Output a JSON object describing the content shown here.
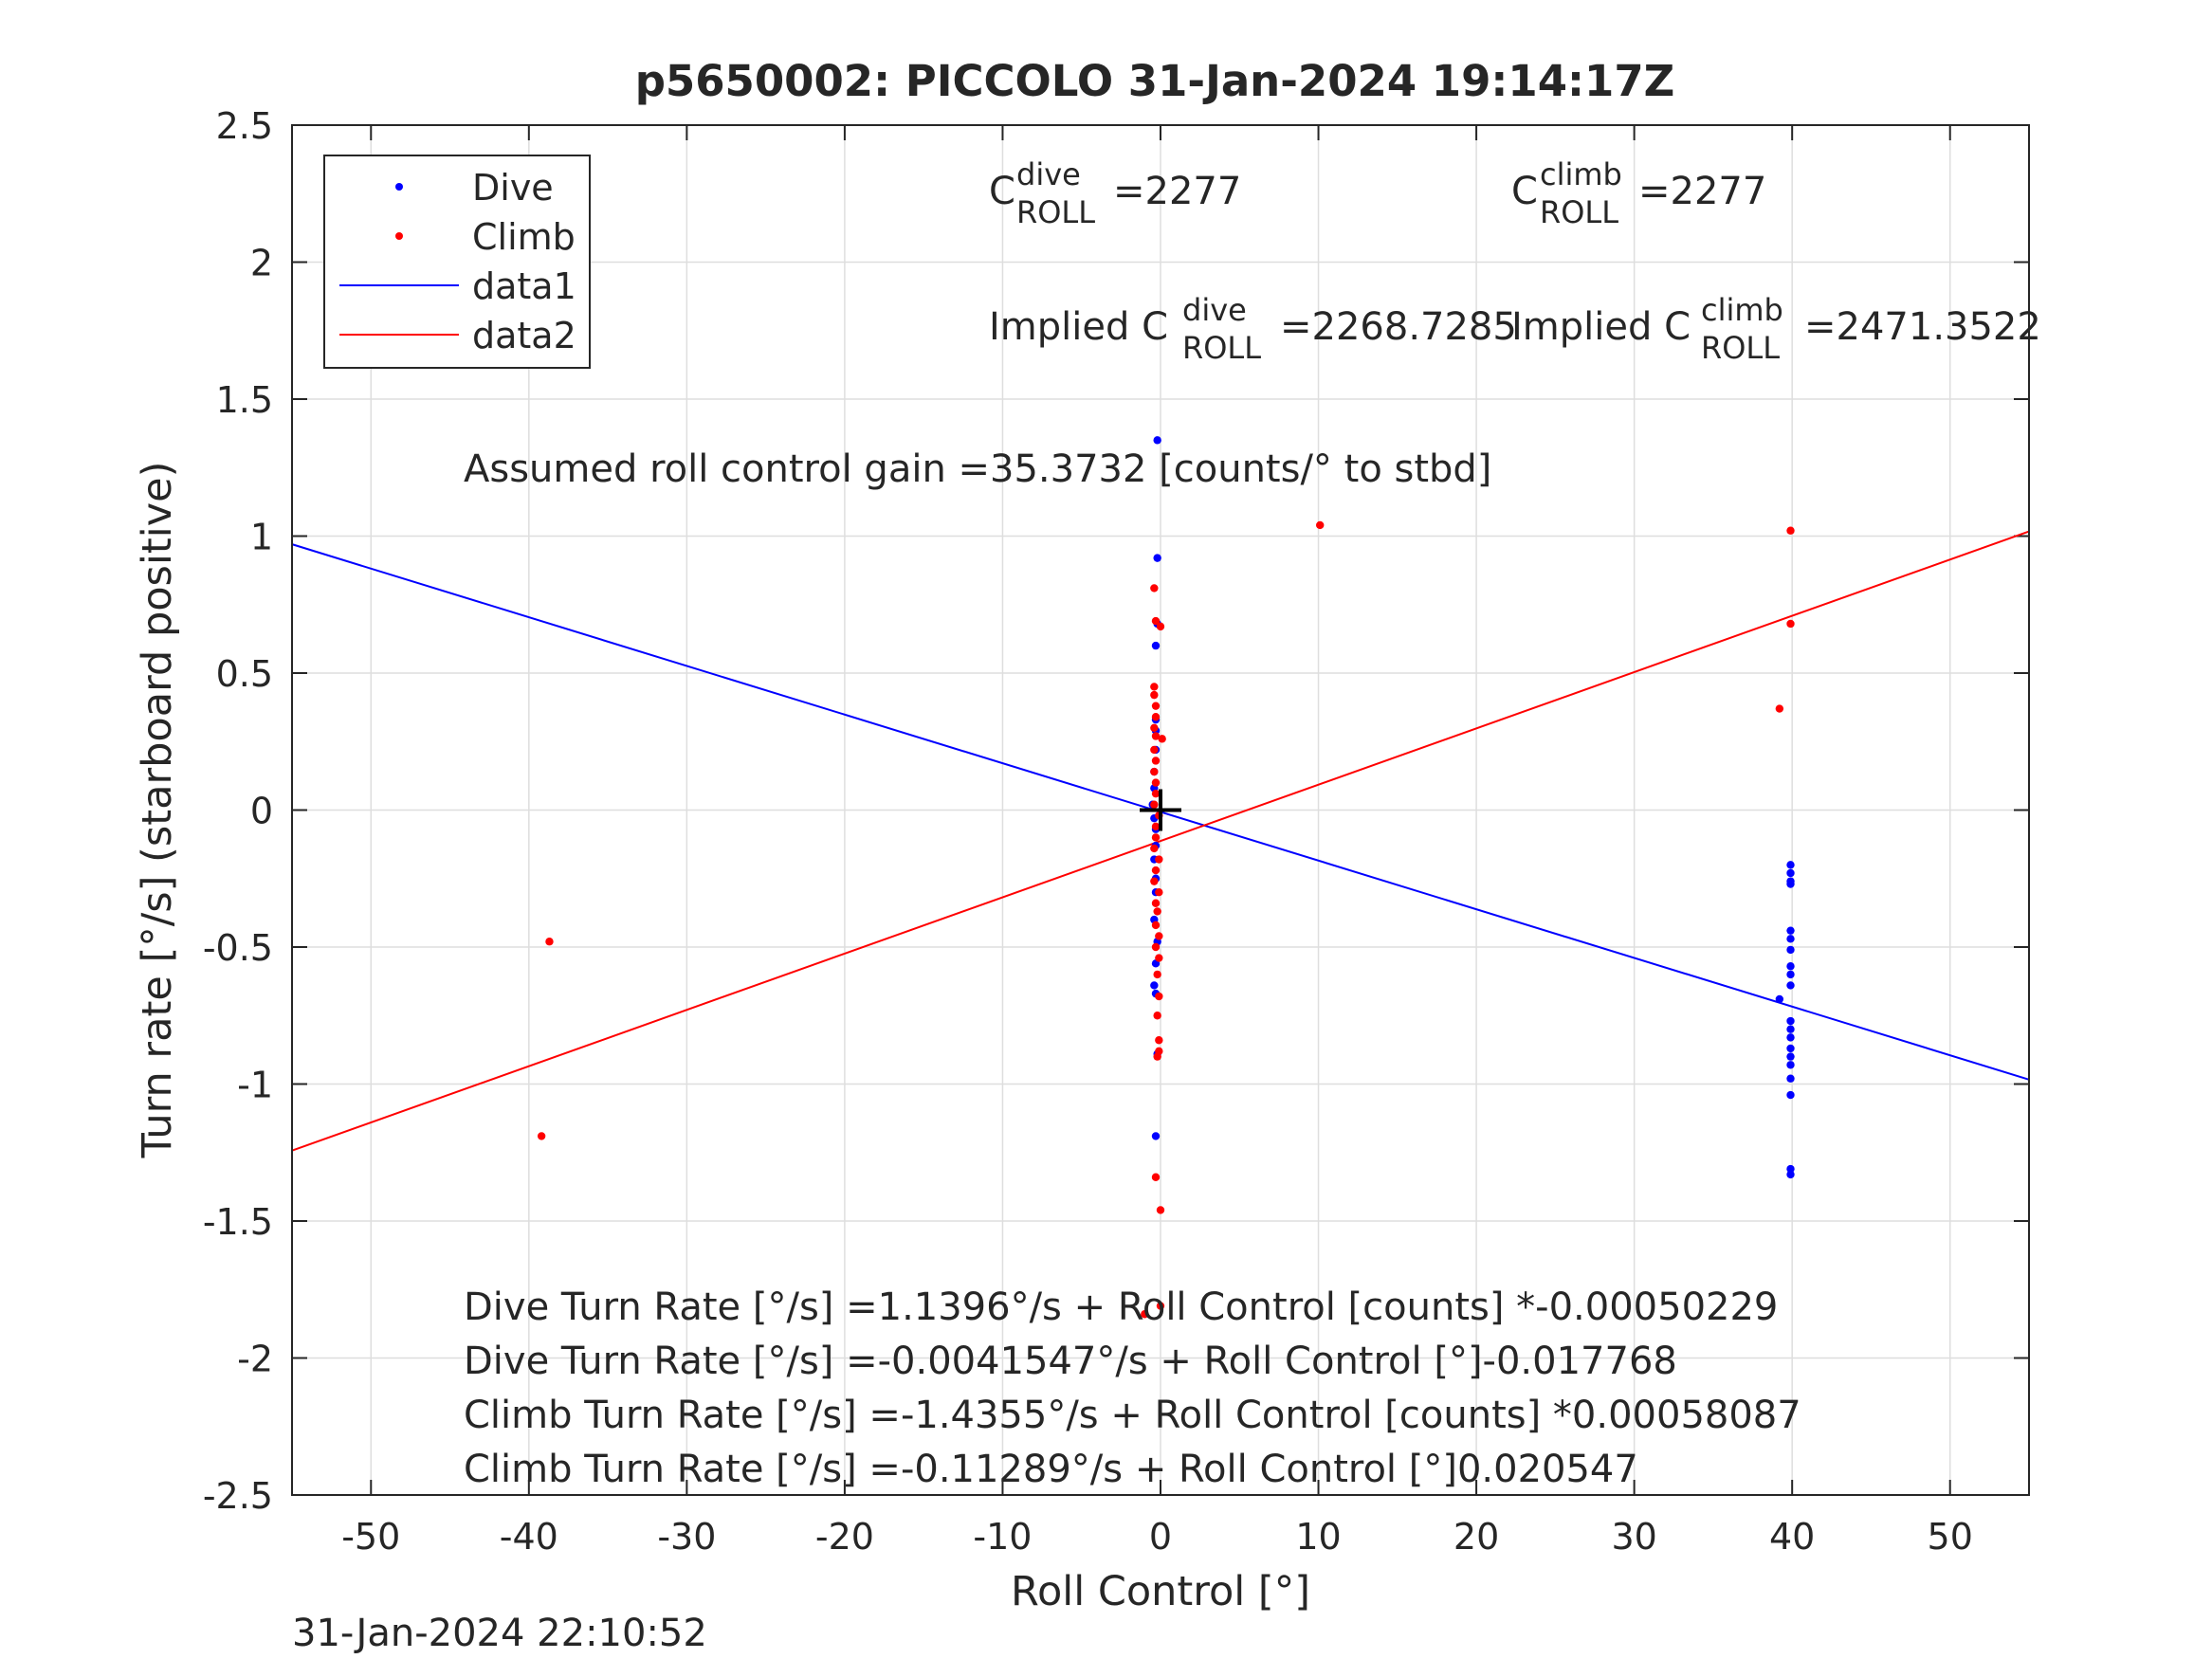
{
  "chart_data": {
    "type": "scatter",
    "title": "p5650002: PICCOLO 31-Jan-2024 19:14:17Z",
    "xlabel": "Roll Control [°]",
    "ylabel": "Turn rate [°/s] (starboard positive)",
    "xlim": [
      -55,
      55
    ],
    "ylim": [
      -2.5,
      2.5
    ],
    "xticks": [
      -50,
      -40,
      -30,
      -20,
      -10,
      0,
      10,
      20,
      30,
      40,
      50
    ],
    "yticks": [
      -2.5,
      -2,
      -1.5,
      -1,
      -0.5,
      0,
      0.5,
      1,
      1.5,
      2,
      2.5
    ],
    "xtick_labels": [
      "-50",
      "-40",
      "-30",
      "-20",
      "-10",
      "0",
      "10",
      "20",
      "30",
      "40",
      "50"
    ],
    "ytick_labels": [
      "-2.5",
      "-2",
      "-1.5",
      "-1",
      "-0.5",
      "0",
      "0.5",
      "1",
      "1.5",
      "2",
      "2.5"
    ],
    "grid": true,
    "legend_position": "top-left",
    "series": [
      {
        "name": "Dive",
        "kind": "points",
        "color": "#0000ff",
        "points": [
          [
            -0.2,
            1.35
          ],
          [
            -0.2,
            0.92
          ],
          [
            -0.2,
            0.68
          ],
          [
            -0.3,
            0.6
          ],
          [
            -0.3,
            0.33
          ],
          [
            -0.3,
            0.29
          ],
          [
            -0.3,
            0.22
          ],
          [
            -0.4,
            0.14
          ],
          [
            -0.4,
            0.08
          ],
          [
            -0.5,
            0.02
          ],
          [
            -0.4,
            -0.03
          ],
          [
            -0.3,
            -0.07
          ],
          [
            -0.3,
            -0.13
          ],
          [
            -0.4,
            -0.18
          ],
          [
            -0.3,
            -0.25
          ],
          [
            -0.3,
            -0.3
          ],
          [
            -0.4,
            -0.4
          ],
          [
            -0.2,
            -0.48
          ],
          [
            -0.3,
            -0.56
          ],
          [
            -0.4,
            -0.64
          ],
          [
            -0.3,
            -0.67
          ],
          [
            -0.2,
            -0.89
          ],
          [
            -0.3,
            -1.19
          ],
          [
            39.9,
            -0.2
          ],
          [
            39.9,
            -0.23
          ],
          [
            39.9,
            -0.26
          ],
          [
            39.9,
            -0.27
          ],
          [
            39.9,
            -0.44
          ],
          [
            39.9,
            -0.47
          ],
          [
            39.9,
            -0.51
          ],
          [
            39.9,
            -0.57
          ],
          [
            39.9,
            -0.6
          ],
          [
            39.9,
            -0.64
          ],
          [
            39.2,
            -0.69
          ],
          [
            39.9,
            -0.77
          ],
          [
            39.9,
            -0.8
          ],
          [
            39.9,
            -0.83
          ],
          [
            39.9,
            -0.87
          ],
          [
            39.9,
            -0.9
          ],
          [
            39.9,
            -0.93
          ],
          [
            39.9,
            -0.98
          ],
          [
            39.9,
            -1.04
          ],
          [
            39.9,
            -1.31
          ],
          [
            39.9,
            -1.33
          ]
        ]
      },
      {
        "name": "Climb",
        "kind": "points",
        "color": "#ff0000",
        "points": [
          [
            10.1,
            1.04
          ],
          [
            39.9,
            1.02
          ],
          [
            39.9,
            0.68
          ],
          [
            39.2,
            0.37
          ],
          [
            -38.7,
            -0.48
          ],
          [
            -39.2,
            -1.19
          ],
          [
            -0.4,
            0.81
          ],
          [
            -0.3,
            0.69
          ],
          [
            0.0,
            0.67
          ],
          [
            -0.4,
            0.45
          ],
          [
            -0.4,
            0.42
          ],
          [
            -0.3,
            0.38
          ],
          [
            -0.3,
            0.34
          ],
          [
            -0.4,
            0.3
          ],
          [
            -0.3,
            0.27
          ],
          [
            0.1,
            0.26
          ],
          [
            -0.4,
            0.22
          ],
          [
            -0.3,
            0.18
          ],
          [
            -0.4,
            0.14
          ],
          [
            -0.3,
            0.1
          ],
          [
            -0.3,
            0.06
          ],
          [
            -0.4,
            0.02
          ],
          [
            -0.1,
            -0.02
          ],
          [
            -0.3,
            -0.06
          ],
          [
            -0.3,
            -0.1
          ],
          [
            -0.4,
            -0.14
          ],
          [
            -0.1,
            -0.18
          ],
          [
            -0.3,
            -0.22
          ],
          [
            -0.4,
            -0.26
          ],
          [
            -0.1,
            -0.3
          ],
          [
            -0.3,
            -0.34
          ],
          [
            -0.2,
            -0.37
          ],
          [
            -0.3,
            -0.42
          ],
          [
            -0.1,
            -0.46
          ],
          [
            -0.3,
            -0.5
          ],
          [
            -0.1,
            -0.54
          ],
          [
            -0.2,
            -0.6
          ],
          [
            -0.1,
            -0.68
          ],
          [
            -0.2,
            -0.75
          ],
          [
            -0.1,
            -0.84
          ],
          [
            -0.1,
            -0.88
          ],
          [
            -0.2,
            -0.9
          ],
          [
            -0.3,
            -1.34
          ],
          [
            0.0,
            -1.46
          ],
          [
            -1.0,
            -1.84
          ],
          [
            0.0,
            -1.81
          ]
        ]
      },
      {
        "name": "data1",
        "kind": "line",
        "color": "#0000ff",
        "x": [
          -55,
          55
        ],
        "y": [
          0.9702,
          -0.9838
        ]
      },
      {
        "name": "data2",
        "kind": "line",
        "color": "#ff0000",
        "x": [
          -55,
          55
        ],
        "y": [
          -1.243,
          1.0172
        ]
      }
    ],
    "center_marker": {
      "x": 0,
      "y": 0,
      "symbol": "+",
      "color": "#000000"
    },
    "annotations": {
      "c_roll_dive": {
        "base": "C",
        "sup": "dive",
        "sub": "ROLL",
        "value": "=2277"
      },
      "c_roll_climb": {
        "base": "C",
        "sup": "climb",
        "sub": "ROLL",
        "value": "=2277"
      },
      "implied_dive": {
        "prefix": "Implied C",
        "sup": "dive",
        "sub": "ROLL",
        "value": "=2268.7285"
      },
      "implied_climb": {
        "prefix": "Implied C",
        "sup": "climb",
        "sub": "ROLL",
        "value": "=2471.3522"
      },
      "gain": "Assumed roll control gain =35.3732 [counts/° to stbd]",
      "fits": [
        "Dive Turn Rate [°/s] =1.1396°/s + Roll Control [counts] *-0.00050229",
        "Dive Turn Rate [°/s] =-0.0041547°/s + Roll Control [°]-0.017768",
        "Climb Turn Rate [°/s] =-1.4355°/s + Roll Control [counts] *0.00058087",
        "Climb Turn Rate [°/s] =-0.11289°/s + Roll Control [°]0.020547"
      ]
    },
    "footer": "31-Jan-2024 22:10:52"
  }
}
